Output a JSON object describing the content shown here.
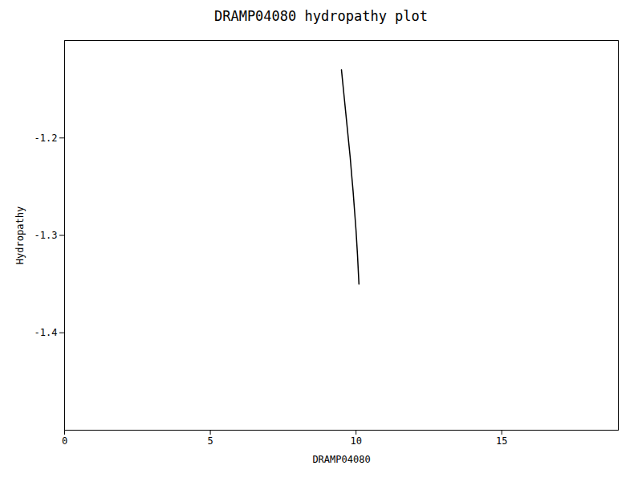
{
  "chart_data": {
    "type": "line",
    "title": "DRAMP04080 hydropathy plot",
    "xlabel": "DRAMP04080",
    "ylabel": "Hydropathy",
    "x": [
      9.5,
      9.55,
      9.6,
      9.65,
      9.7,
      9.75,
      9.8,
      9.85,
      9.9,
      9.95,
      10.0,
      10.05,
      10.1
    ],
    "values": [
      -1.13,
      -1.145,
      -1.16,
      -1.175,
      -1.19,
      -1.205,
      -1.22,
      -1.238,
      -1.255,
      -1.275,
      -1.295,
      -1.32,
      -1.35
    ],
    "color": "#000000",
    "xlim": [
      0,
      19
    ],
    "ylim": [
      -1.5,
      -1.1
    ],
    "xticks": [
      0,
      5,
      10,
      15
    ],
    "yticks": [
      -1.4,
      -1.3,
      -1.2
    ],
    "grid": false
  }
}
